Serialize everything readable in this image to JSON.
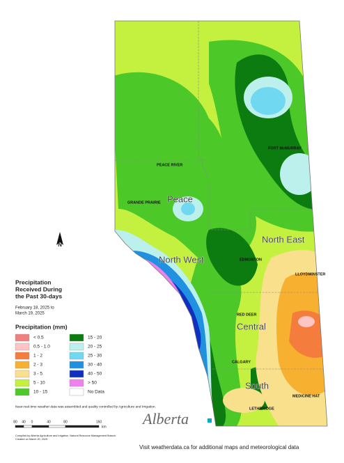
{
  "title_lines": [
    "Precipitation",
    "Received During",
    "the Past 30-days"
  ],
  "date_lines": [
    "February 18, 2025 to",
    "March 19, 2025"
  ],
  "legend": {
    "title": "Precipitation (mm)",
    "items": [
      {
        "label": "< 0.5",
        "color": "#f08080"
      },
      {
        "label": "0.5 - 1.0",
        "color": "#ffc4c4"
      },
      {
        "label": "1 - 2",
        "color": "#f47c3c"
      },
      {
        "label": "2 - 3",
        "color": "#f8b030"
      },
      {
        "label": "3 - 5",
        "color": "#f8e08c"
      },
      {
        "label": "5 - 10",
        "color": "#c4f040"
      },
      {
        "label": "10 - 15",
        "color": "#4cc828"
      },
      {
        "label": "15 - 20",
        "color": "#0c7c10"
      },
      {
        "label": "20 - 25",
        "color": "#bcf0ec"
      },
      {
        "label": "25 - 30",
        "color": "#70d8f0"
      },
      {
        "label": "30 - 40",
        "color": "#2090e0"
      },
      {
        "label": "40 - 50",
        "color": "#1030c0"
      },
      {
        "label": "> 50",
        "color": "#f080f0"
      },
      {
        "label": "No Data",
        "color": "#ffffff"
      }
    ]
  },
  "regions": [
    "Peace",
    "North West",
    "North East",
    "Central",
    "South"
  ],
  "cities": [
    "PEACE RIVER",
    "GRANDE PRAIRIE",
    "FORT McMURRAY",
    "EDMONTON",
    "RED DEER",
    "CALGARY",
    "LLOYDMINSTER",
    "MEDICINE HAT",
    "LETHBRIDGE"
  ],
  "north": "N",
  "note": "Near-real-time weather data was assembled and quality controlled by Agriculture and Irrigation.",
  "scale": {
    "labels": [
      "80",
      "40",
      "0",
      "40",
      "80",
      "160"
    ],
    "unit": "km"
  },
  "credit_lines": [
    "Compiled by Alberta Agriculture and Irrigation, Natural Resource Management Branch.",
    "Created on March 20, 2025"
  ],
  "logo": "Alberta",
  "footer": "Visit weatherdata.ca for additional maps and meteorological data"
}
